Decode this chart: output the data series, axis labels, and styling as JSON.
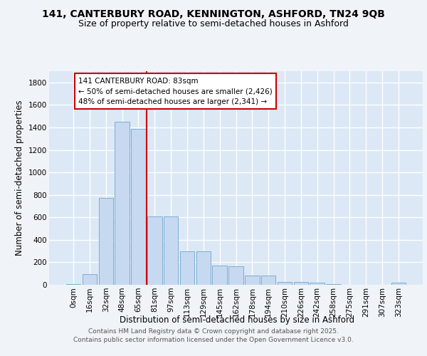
{
  "title_line1": "141, CANTERBURY ROAD, KENNINGTON, ASHFORD, TN24 9QB",
  "title_line2": "Size of property relative to semi-detached houses in Ashford",
  "xlabel": "Distribution of semi-detached houses by size in Ashford",
  "ylabel": "Number of semi-detached properties",
  "categories": [
    "0sqm",
    "16sqm",
    "32sqm",
    "48sqm",
    "65sqm",
    "81sqm",
    "97sqm",
    "113sqm",
    "129sqm",
    "145sqm",
    "162sqm",
    "178sqm",
    "194sqm",
    "210sqm",
    "226sqm",
    "242sqm",
    "258sqm",
    "275sqm",
    "291sqm",
    "307sqm",
    "323sqm"
  ],
  "bar_values": [
    5,
    95,
    775,
    1450,
    1385,
    610,
    605,
    300,
    295,
    170,
    165,
    80,
    80,
    25,
    25,
    18,
    5,
    2,
    1,
    1,
    18
  ],
  "bar_color": "#c6d9f0",
  "bar_edge_color": "#7bafd4",
  "vline_pos": 5.5,
  "vline_color": "#cc0000",
  "annotation_title": "141 CANTERBURY ROAD: 83sqm",
  "annotation_line1": "← 50% of semi-detached houses are smaller (2,426)",
  "annotation_line2": "48% of semi-detached houses are larger (2,341) →",
  "annotation_box_facecolor": "#ffffff",
  "annotation_box_edgecolor": "#cc0000",
  "ylim": [
    0,
    1900
  ],
  "yticks": [
    0,
    200,
    400,
    600,
    800,
    1000,
    1200,
    1400,
    1600,
    1800
  ],
  "bg_color": "#dce8f5",
  "grid_color": "#ffffff",
  "fig_bg_color": "#f0f4f8",
  "title_fontsize": 10,
  "subtitle_fontsize": 9,
  "axis_label_fontsize": 8.5,
  "tick_fontsize": 7.5,
  "annotation_fontsize": 7.5,
  "footer_fontsize": 6.5,
  "footer_line1": "Contains HM Land Registry data © Crown copyright and database right 2025.",
  "footer_line2": "Contains public sector information licensed under the Open Government Licence v3.0."
}
